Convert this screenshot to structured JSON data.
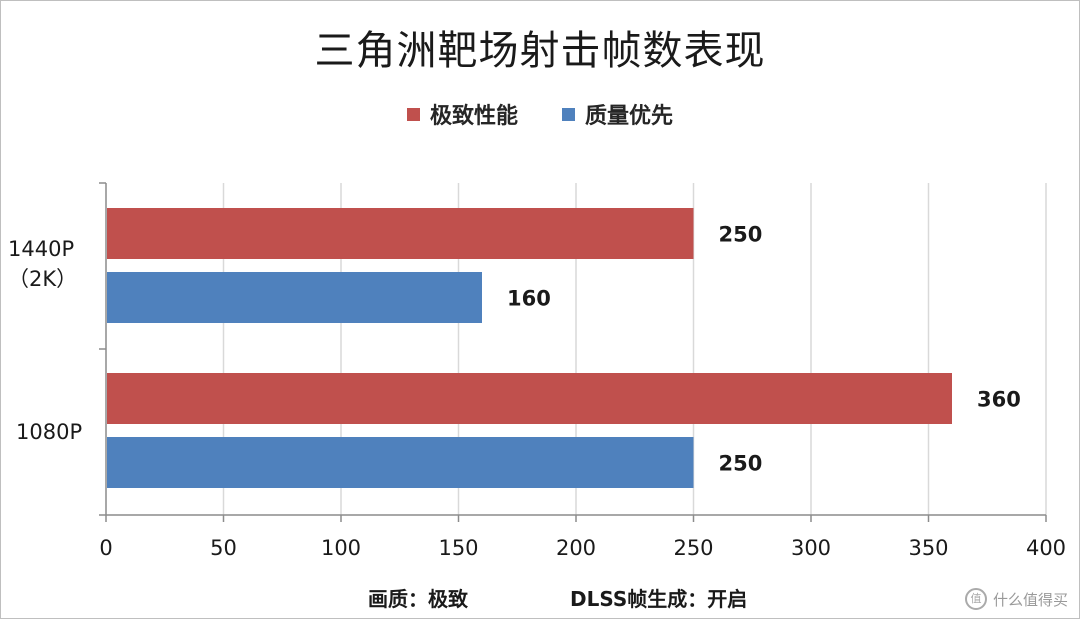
{
  "chart_data": {
    "type": "bar",
    "orientation": "horizontal",
    "title": "三角洲靶场射击帧数表现",
    "categories": [
      "1440P\n（2K）",
      "1080P"
    ],
    "series": [
      {
        "name": "极致性能",
        "color": "#c0504d",
        "values": [
          250,
          360
        ]
      },
      {
        "name": "质量优先",
        "color": "#4f81bd",
        "values": [
          160,
          250
        ]
      }
    ],
    "xlim": [
      0,
      400
    ],
    "xticks": [
      0,
      50,
      100,
      150,
      200,
      250,
      300,
      350,
      400
    ],
    "grid": true,
    "legend_position": "top"
  },
  "footer": {
    "left": "画质：极致",
    "right": "DLSS帧生成：开启"
  },
  "watermark": {
    "icon": "值",
    "text": "什么值得买"
  }
}
